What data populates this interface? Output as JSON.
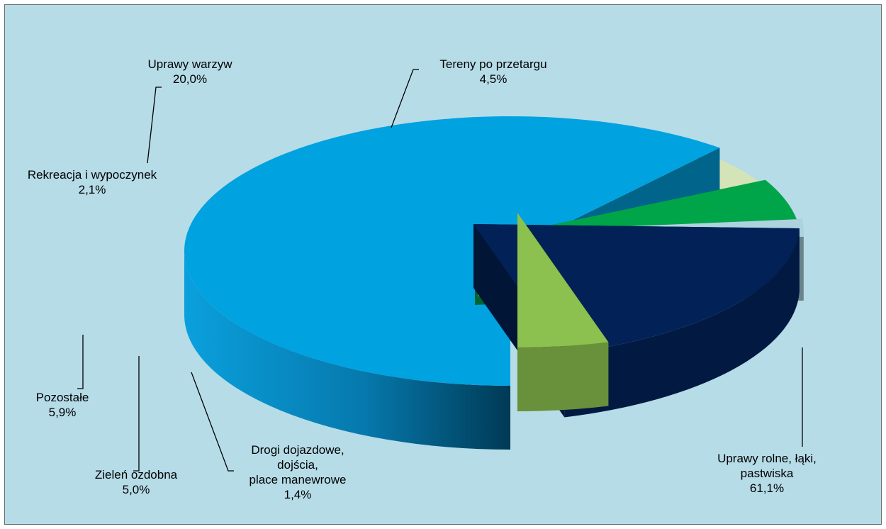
{
  "chart_data": {
    "type": "pie",
    "style": "3d-exploded",
    "background_color": "#b6dce8",
    "labels_format": "category and percent",
    "legend": "none",
    "slices": [
      {
        "key": "uprawy-rolne",
        "lines": [
          "Uprawy rolne, łąki,",
          "pastwiska"
        ],
        "percent_label": "61,1%",
        "value": 61.1,
        "color": "#00a2e0"
      },
      {
        "key": "drogi",
        "lines": [
          "Drogi dojazdowe,",
          "dojścia,",
          "place manewrowe"
        ],
        "percent_label": "1,4%",
        "value": 1.4,
        "color": "#36598f"
      },
      {
        "key": "zielen",
        "lines": [
          "Zieleń ozdobna"
        ],
        "percent_label": "5,0%",
        "value": 5.0,
        "color": "#d5e3b9"
      },
      {
        "key": "pozostale",
        "lines": [
          "Pozostałe"
        ],
        "percent_label": "5,9%",
        "value": 5.9,
        "color": "#00a54a"
      },
      {
        "key": "rekreacja",
        "lines": [
          "Rekreacja i wypoczynek"
        ],
        "percent_label": "2,1%",
        "value": 2.1,
        "color": "#add3df"
      },
      {
        "key": "uprawy-warzyw",
        "lines": [
          "Uprawy warzyw"
        ],
        "percent_label": "20,0%",
        "value": 20.0,
        "color": "#022257"
      },
      {
        "key": "tereny",
        "lines": [
          "Tereny po przetargu"
        ],
        "percent_label": "4,5%",
        "value": 4.5,
        "color": "#8cc04f"
      }
    ]
  }
}
